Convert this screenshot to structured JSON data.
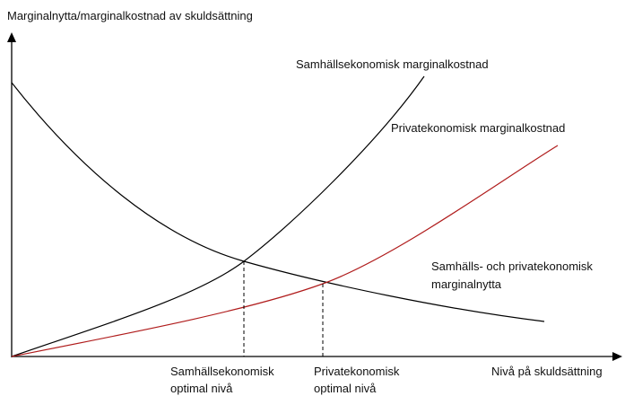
{
  "axis_labels": {
    "y": "Marginalnytta/marginalkostnad av skuldsättning",
    "x": "Nivå på skuldsättning"
  },
  "curves": {
    "social_cost": "Samhällsekonomisk marginalkostnad",
    "private_cost": "Privatekonomisk marginalkostnad",
    "benefit": [
      "Samhälls- och privatekonomisk",
      "marginalnytta"
    ]
  },
  "optimum": {
    "social": [
      "Samhällsekonomisk",
      "optimal nivå"
    ],
    "private": [
      "Privatekonomisk",
      "optimal nivå"
    ]
  }
}
